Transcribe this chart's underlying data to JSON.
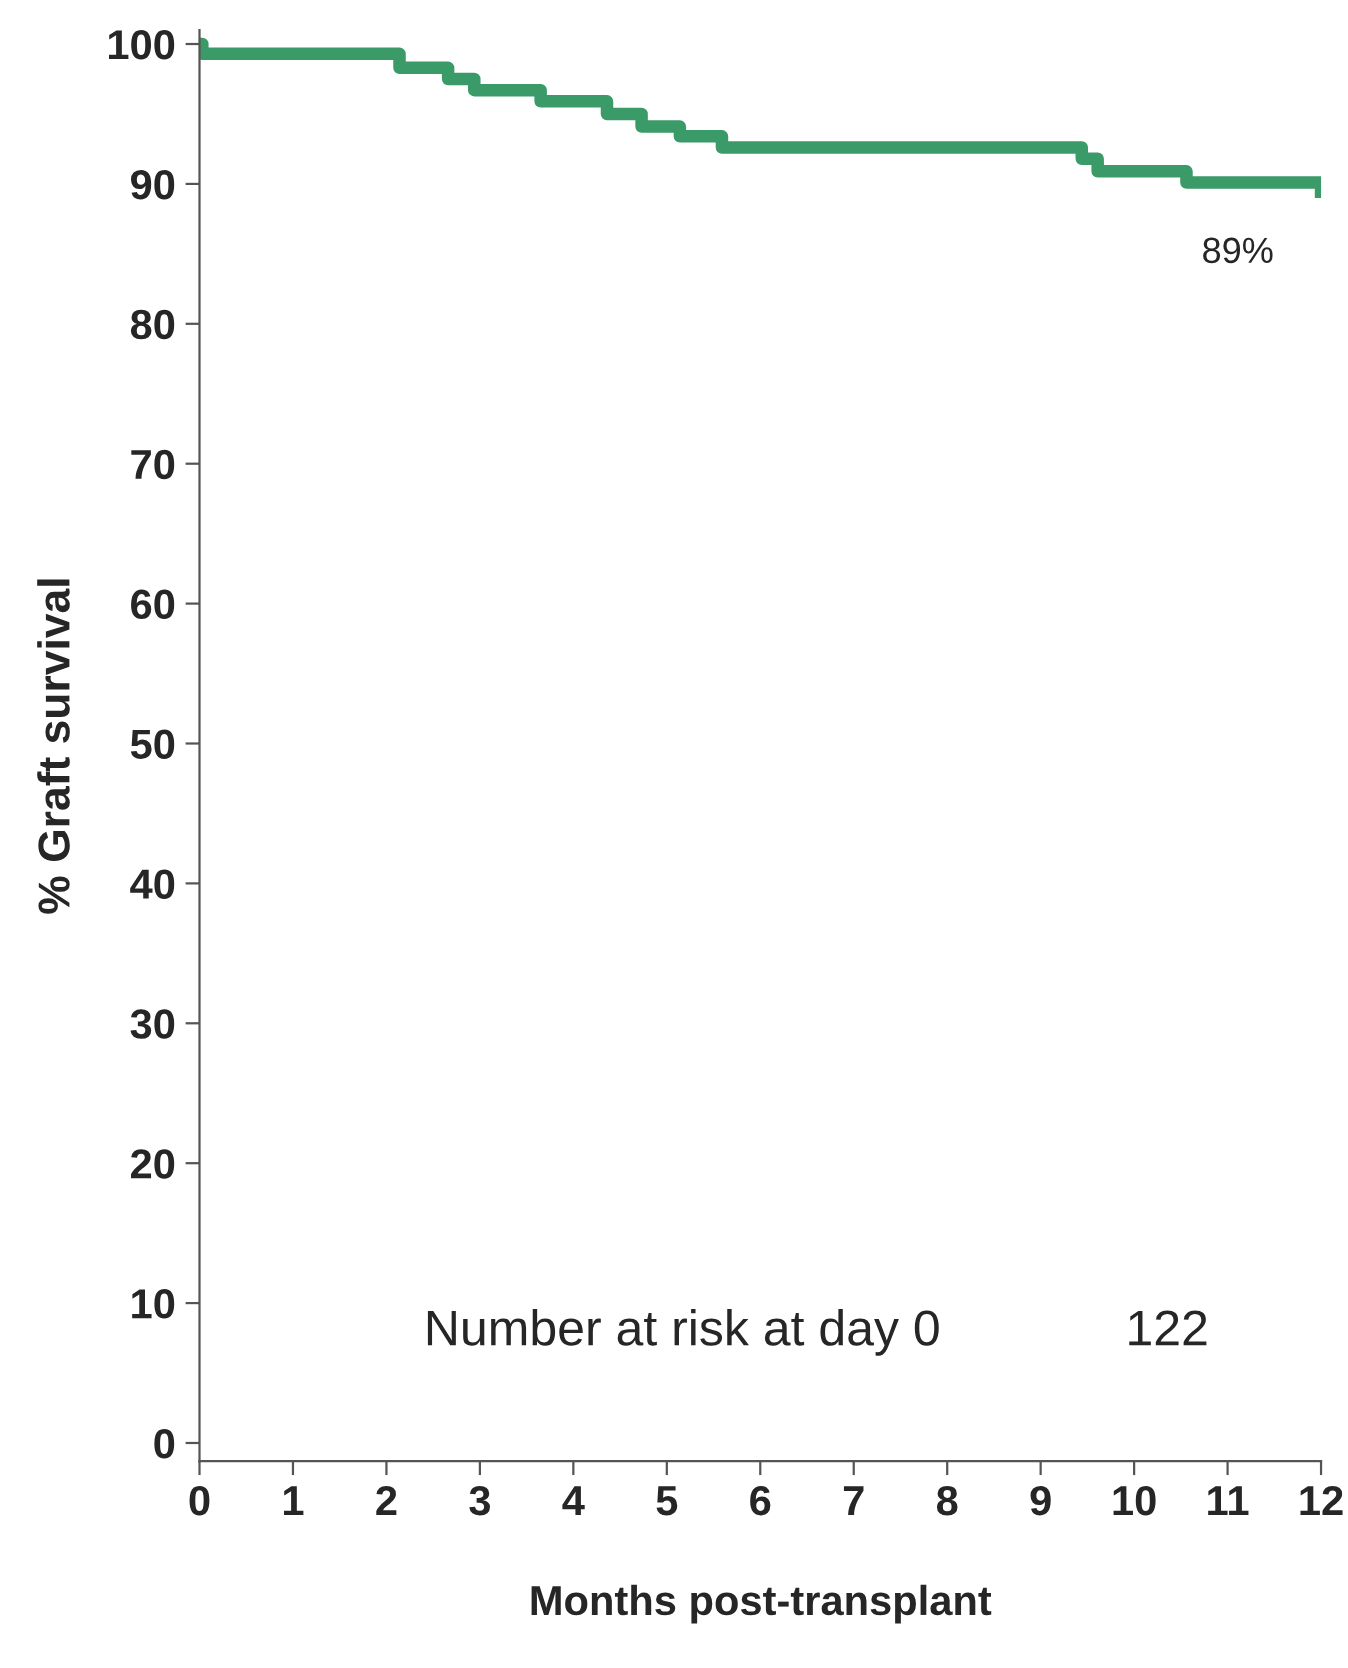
{
  "chart_data": {
    "type": "step",
    "xlabel": "Months post-transplant",
    "ylabel": "% Graft survival",
    "x": [
      0,
      0.03,
      2.14,
      2.66,
      2.94,
      3.65,
      4.36,
      4.73,
      5.14,
      5.59,
      9.44,
      9.61,
      10.56,
      12
    ],
    "series": [
      {
        "color": "#3a9a68",
        "values": [
          100,
          99.3,
          98.3,
          97.5,
          96.7,
          95.9,
          95.0,
          94.1,
          93.4,
          92.6,
          91.8,
          90.9,
          90.1,
          89.0
        ]
      }
    ],
    "xlim": [
      0,
      12
    ],
    "xticks": [
      0,
      1,
      2,
      3,
      4,
      5,
      6,
      7,
      8,
      9,
      10,
      11,
      12
    ],
    "ylim": [
      -1.3,
      101
    ],
    "yticks": [
      0,
      10,
      20,
      30,
      40,
      50,
      60,
      70,
      80,
      90,
      100
    ],
    "grid": false,
    "legend": false,
    "annotations": [
      {
        "text": "89%",
        "x": 12,
        "y": 89
      },
      "Number at risk at day 0",
      "122"
    ]
  }
}
